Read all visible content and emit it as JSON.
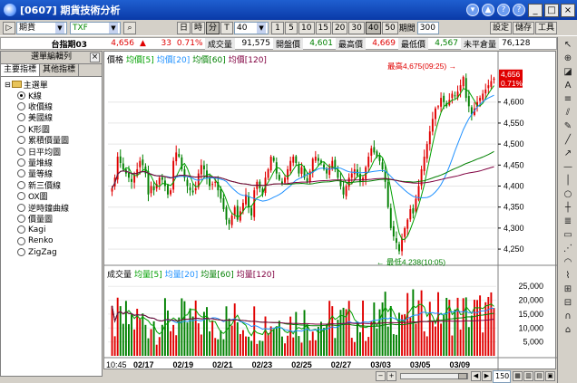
{
  "window": {
    "title": "[0607] 期貨技術分析",
    "buttons": [
      "▾",
      "▲",
      "?",
      "?",
      "_",
      "□",
      "×"
    ]
  },
  "toolbar": {
    "market": "期貨",
    "symbol": "TXF",
    "periods": [
      "日",
      "時",
      "分",
      "T"
    ],
    "period_active": "分",
    "interval": "40",
    "intervals": [
      "1",
      "5",
      "10",
      "15",
      "20",
      "30",
      "40",
      "50"
    ],
    "interval_active": "40",
    "range_label": "期間",
    "range_value": "300",
    "right_buttons": [
      "設定",
      "儲存",
      "工具"
    ]
  },
  "quote": {
    "name": "台指期03",
    "price": "4,656",
    "change": "33",
    "change_pct": "0.71%",
    "volume_label": "成交量",
    "volume": "91,575",
    "open_label": "開盤價",
    "open": "4,601",
    "high_label": "最高價",
    "high": "4,669",
    "low_label": "最低價",
    "low": "4,567",
    "oi_label": "未平倉量",
    "oi": "76,128"
  },
  "left_panel": {
    "title": "選單編輯列",
    "tabs": [
      "主要指標",
      "其他指標"
    ],
    "root": "主選單",
    "options": [
      "K線",
      "收價線",
      "美國線",
      "K形圖",
      "累積價量圖",
      "日平均圖",
      "量堆線",
      "量等線",
      "新三價線",
      "OX圖",
      "逆時鐘曲線",
      "價量圖",
      "Kagi",
      "Renko",
      "ZigZag"
    ],
    "selected": 0
  },
  "chart": {
    "price_legend": [
      {
        "label": "價格",
        "color": "#000000"
      },
      {
        "label": "均價[5]",
        "color": "#00a000"
      },
      {
        "label": "均價[20]",
        "color": "#1e90ff"
      },
      {
        "label": "均價[60]",
        "color": "#008000"
      },
      {
        "label": "均價[120]",
        "color": "#800040"
      }
    ],
    "volume_legend": [
      {
        "label": "成交量",
        "color": "#000000"
      },
      {
        "label": "均量[5]",
        "color": "#00a000"
      },
      {
        "label": "均量[20]",
        "color": "#1e90ff"
      },
      {
        "label": "均量[60]",
        "color": "#008000"
      },
      {
        "label": "均量[120]",
        "color": "#800040"
      }
    ],
    "price_ticks": [
      "4,600",
      "4,550",
      "4,500",
      "4,450",
      "4,400",
      "4,350",
      "4,300",
      "4,250"
    ],
    "volume_ticks": [
      "25,000",
      "20,000",
      "15,000",
      "10,000",
      "5,000"
    ],
    "x_labels": [
      "10:45",
      "02/17",
      "02/19",
      "02/21",
      "02/23",
      "02/25",
      "02/27",
      "03/03",
      "03/05",
      "03/09"
    ],
    "high_annotation": "最高4,675(09:25)",
    "low_annotation": "最低4,238(10:05)",
    "last_price_tag": "4,656",
    "last_pct_tag": "0.71%",
    "up_color": "#e00000",
    "down_color": "#008000"
  },
  "chart_data": {
    "type": "candlestick",
    "price_range": [
      4220,
      4690
    ],
    "volume_range": [
      0,
      28000
    ],
    "closes": [
      4395,
      4420,
      4470,
      4455,
      4440,
      4430,
      4420,
      4410,
      4425,
      4440,
      4460,
      4450,
      4430,
      4380,
      4400,
      4390,
      4405,
      4420,
      4415,
      4400,
      4380,
      4390,
      4460,
      4480,
      4470,
      4440,
      4420,
      4400,
      4390,
      4385,
      4395,
      4430,
      4450,
      4440,
      4420,
      4400,
      4405,
      4410,
      4390,
      4370,
      4345,
      4320,
      4310,
      4330,
      4350,
      4320,
      4340,
      4360,
      4380,
      4350,
      4330,
      4390,
      4410,
      4395,
      4380,
      4420,
      4440,
      4470,
      4460,
      4430,
      4415,
      4405,
      4420,
      4440,
      4460,
      4470,
      4455,
      4430,
      4445,
      4420,
      4410,
      4435,
      4465,
      4470,
      4460,
      4455,
      4440,
      4430,
      4445,
      4460,
      4440,
      4420,
      4400,
      4380,
      4400,
      4420,
      4430,
      4440,
      4425,
      4410,
      4420,
      4445,
      4470,
      4490,
      4480,
      4470,
      4460,
      4440,
      4410,
      4350,
      4300,
      4280,
      4265,
      4245,
      4275,
      4300,
      4320,
      4345,
      4335,
      4370,
      4400,
      4440,
      4470,
      4500,
      4530,
      4560,
      4585,
      4590,
      4610,
      4600,
      4590,
      4605,
      4620,
      4615,
      4625,
      4640,
      4660,
      4610,
      4590,
      4570,
      4585,
      4600,
      4610,
      4620,
      4630,
      4640,
      4650,
      4656
    ]
  }
}
